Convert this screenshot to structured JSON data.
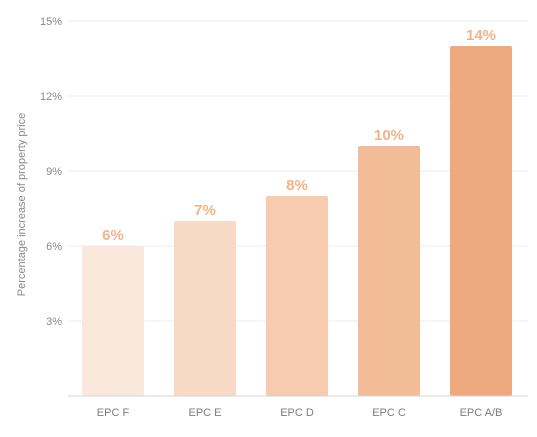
{
  "chart_data": {
    "type": "bar",
    "categories": [
      "EPC F",
      "EPC E",
      "EPC D",
      "EPC C",
      "EPC A/B"
    ],
    "values": [
      6,
      7,
      8,
      10,
      14
    ],
    "data_labels": [
      "6%",
      "7%",
      "8%",
      "10%",
      "14%"
    ],
    "ylabel": "Percentage increase of property price",
    "xlabel": "",
    "ylim": [
      0,
      15
    ],
    "yticks": [
      3,
      6,
      9,
      12,
      15
    ],
    "ytick_labels": [
      "3%",
      "6%",
      "9%",
      "12%",
      "15%"
    ],
    "grid": true,
    "legend": "none",
    "colors": {
      "bars": [
        "#fbe8dc",
        "#f8d9c5",
        "#f6cbaf",
        "#f3bc98",
        "#eea97f"
      ],
      "data_label": "#f0b48a",
      "grid": "#ececec",
      "axis": "#d4d4d4"
    }
  }
}
